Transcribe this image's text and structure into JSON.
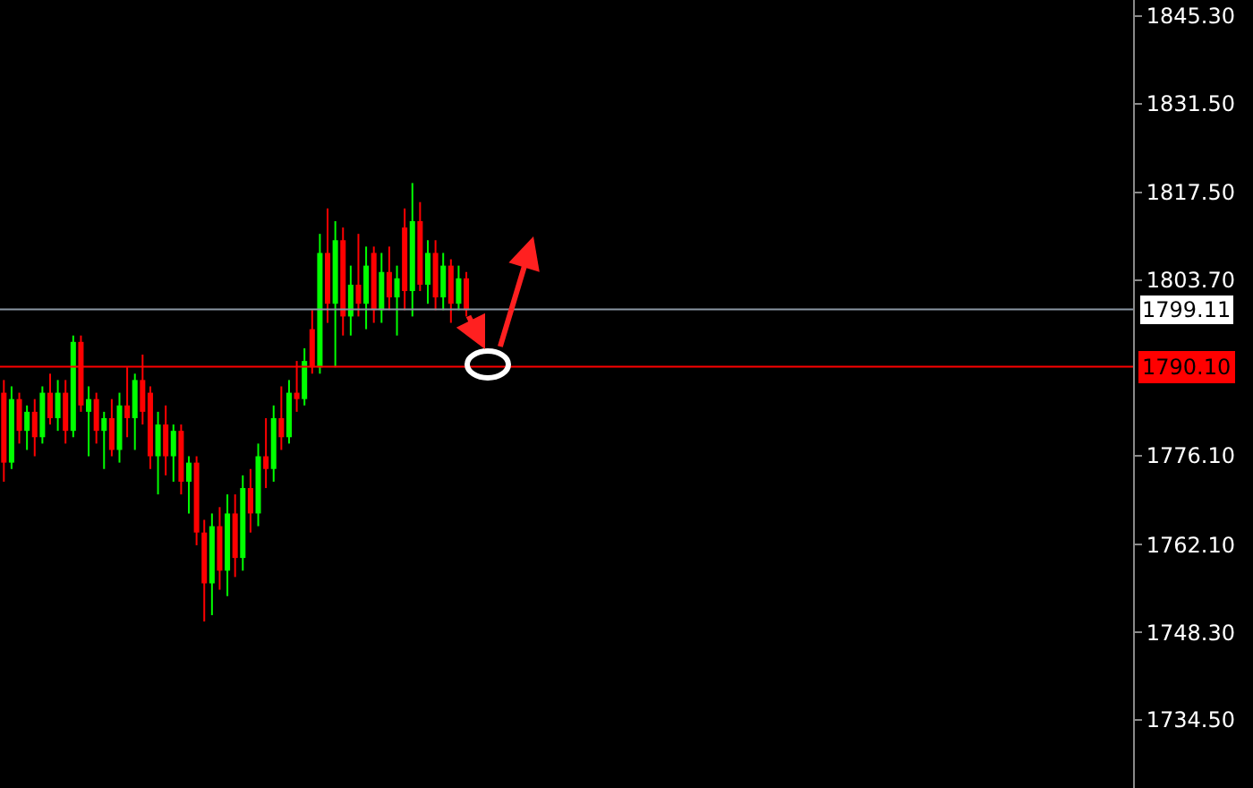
{
  "chart_data": {
    "type": "candlestick",
    "categories": [
      null,
      null,
      null,
      null,
      null,
      null,
      null,
      null,
      null,
      null,
      null,
      null,
      null,
      null,
      null,
      null,
      null,
      null,
      null,
      null,
      null,
      null,
      null,
      null,
      null,
      null,
      null,
      null,
      null,
      null,
      null,
      null,
      null,
      null,
      null,
      null,
      null,
      null,
      null,
      null,
      null,
      null,
      null,
      null,
      null,
      null,
      null,
      null,
      null,
      null,
      null,
      null,
      null,
      null,
      null,
      null,
      null,
      null,
      null,
      null,
      null,
      null,
      null,
      null,
      null,
      null,
      null,
      null,
      null,
      null,
      null,
      null,
      null,
      null,
      null,
      null,
      null,
      null,
      null,
      null,
      null,
      null,
      null,
      null,
      null,
      null,
      null,
      null,
      null,
      null,
      null,
      null,
      null,
      null,
      null,
      null,
      null,
      null,
      null,
      null,
      null,
      null,
      null,
      null,
      null,
      null,
      null,
      null,
      null,
      null,
      null,
      null,
      null,
      null,
      null,
      null,
      null,
      null,
      null,
      null,
      null,
      null,
      null,
      null,
      null,
      null,
      null,
      null,
      null,
      null,
      null,
      null,
      null,
      null,
      null,
      null,
      null,
      null,
      null,
      null,
      null,
      null,
      null,
      null,
      null,
      null,
      null
    ],
    "ohlc": [
      [
        1786,
        1788,
        1772,
        1775
      ],
      [
        1775,
        1787,
        1774,
        1785
      ],
      [
        1785,
        1786,
        1778,
        1780
      ],
      [
        1780,
        1784,
        1777,
        1783
      ],
      [
        1783,
        1785,
        1776,
        1779
      ],
      [
        1779,
        1787,
        1778,
        1786
      ],
      [
        1786,
        1789,
        1781,
        1782
      ],
      [
        1782,
        1788,
        1780,
        1786
      ],
      [
        1786,
        1788,
        1778,
        1780
      ],
      [
        1780,
        1795,
        1779,
        1794
      ],
      [
        1794,
        1795,
        1783,
        1784
      ],
      [
        1783,
        1787,
        1776,
        1785
      ],
      [
        1785,
        1786,
        1778,
        1780
      ],
      [
        1780,
        1783,
        1774,
        1782
      ],
      [
        1782,
        1785,
        1776,
        1777
      ],
      [
        1777,
        1786,
        1775,
        1784
      ],
      [
        1784,
        1790,
        1779,
        1782
      ],
      [
        1782,
        1789,
        1777,
        1788
      ],
      [
        1788,
        1792,
        1781,
        1783
      ],
      [
        1786,
        1787,
        1774,
        1776
      ],
      [
        1776,
        1783,
        1770,
        1781
      ],
      [
        1781,
        1784,
        1773,
        1776
      ],
      [
        1776,
        1781,
        1772,
        1780
      ],
      [
        1780,
        1781,
        1770,
        1772
      ],
      [
        1772,
        1776,
        1767,
        1775
      ],
      [
        1775,
        1776,
        1762,
        1764
      ],
      [
        1764,
        1766,
        1750,
        1756
      ],
      [
        1756,
        1767,
        1751,
        1765
      ],
      [
        1765,
        1768,
        1755,
        1758
      ],
      [
        1758,
        1770,
        1754,
        1767
      ],
      [
        1767,
        1770,
        1757,
        1760
      ],
      [
        1760,
        1773,
        1758,
        1771
      ],
      [
        1771,
        1774,
        1764,
        1767
      ],
      [
        1767,
        1778,
        1765,
        1776
      ],
      [
        1776,
        1782,
        1771,
        1774
      ],
      [
        1774,
        1784,
        1772,
        1782
      ],
      [
        1782,
        1787,
        1777,
        1779
      ],
      [
        1779,
        1788,
        1778,
        1786
      ],
      [
        1786,
        1791,
        1783,
        1785
      ],
      [
        1785,
        1793,
        1784,
        1791
      ],
      [
        1796,
        1799,
        1789,
        1790
      ],
      [
        1790,
        1811,
        1789,
        1808
      ],
      [
        1808,
        1815,
        1797,
        1800
      ],
      [
        1800,
        1813,
        1790,
        1810
      ],
      [
        1810,
        1812,
        1795,
        1798
      ],
      [
        1798,
        1806,
        1795,
        1803
      ],
      [
        1803,
        1811,
        1798,
        1800
      ],
      [
        1800,
        1809,
        1796,
        1806
      ],
      [
        1808,
        1809,
        1797,
        1799
      ],
      [
        1799,
        1808,
        1797,
        1805
      ],
      [
        1805,
        1809,
        1799,
        1801
      ],
      [
        1801,
        1806,
        1795,
        1804
      ],
      [
        1812,
        1815,
        1799,
        1802
      ],
      [
        1802,
        1819,
        1798,
        1813
      ],
      [
        1813,
        1816,
        1802,
        1803
      ],
      [
        1803,
        1810,
        1800,
        1808
      ],
      [
        1808,
        1810,
        1799,
        1801
      ],
      [
        1801,
        1808,
        1799,
        1806
      ],
      [
        1806,
        1807,
        1797,
        1800
      ],
      [
        1800,
        1806,
        1799,
        1804
      ],
      [
        1804,
        1805,
        1798,
        1799
      ],
      null,
      null,
      null,
      null,
      null,
      null,
      null,
      null,
      null,
      null,
      null,
      null,
      null,
      null,
      null,
      null,
      null,
      null,
      null,
      null,
      null,
      null,
      null,
      null,
      null,
      null,
      null,
      null,
      null,
      null,
      null,
      null,
      null,
      null,
      null,
      null,
      null,
      null,
      null,
      null,
      null,
      null,
      null,
      null,
      null,
      null,
      null,
      null,
      null,
      null,
      null,
      null,
      null,
      null,
      null,
      null,
      null,
      null,
      null,
      null,
      null,
      null,
      null,
      null,
      null,
      null,
      null,
      null,
      null,
      null,
      null,
      null,
      null,
      null,
      null,
      null,
      null,
      null,
      null,
      null,
      null,
      null,
      null,
      null,
      null,
      null
    ],
    "colors": [
      "#ff0000",
      "#00ff00",
      "#ff0000",
      "#00ff00",
      "#ff0000",
      "#00ff00",
      "#ff0000",
      "#00ff00",
      "#ff0000",
      "#00ff00",
      "#ff0000",
      "#00ff00",
      "#ff0000",
      "#00ff00",
      "#ff0000",
      "#00ff00",
      "#ff0000",
      "#00ff00",
      "#ff0000",
      "#ff0000",
      "#00ff00",
      "#ff0000",
      "#00ff00",
      "#ff0000",
      "#00ff00",
      "#ff0000",
      "#ff0000",
      "#00ff00",
      "#ff0000",
      "#00ff00",
      "#ff0000",
      "#00ff00",
      "#ff0000",
      "#00ff00",
      "#ff0000",
      "#00ff00",
      "#ff0000",
      "#00ff00",
      "#ff0000",
      "#00ff00",
      "#ff0000",
      "#00ff00",
      "#ff0000",
      "#00ff00",
      "#ff0000",
      "#00ff00",
      "#ff0000",
      "#00ff00",
      "#ff0000",
      "#00ff00",
      "#ff0000",
      "#00ff00",
      "#ff0000",
      "#00ff00",
      "#ff0000",
      "#00ff00",
      "#ff0000",
      "#00ff00",
      "#ff0000",
      "#00ff00",
      "#ff0000",
      null,
      null,
      null,
      null,
      null,
      null,
      null,
      null,
      null,
      null,
      null,
      null,
      null,
      null,
      null,
      null,
      null,
      null,
      null,
      null,
      null,
      null,
      null,
      null,
      null,
      null,
      null,
      null,
      null,
      null,
      null,
      null,
      null,
      null,
      null,
      null,
      null,
      null,
      null,
      null,
      null,
      null,
      null,
      null,
      null,
      null,
      null,
      null,
      null,
      null,
      null,
      null,
      null,
      null,
      null,
      null,
      null,
      null,
      null,
      null,
      null,
      null,
      null,
      null,
      null,
      null,
      null,
      null,
      null,
      null,
      null,
      null,
      null,
      null,
      null,
      null,
      null,
      null,
      null,
      null,
      null,
      null,
      null,
      null,
      null,
      null
    ],
    "ylim": [
      1723.8,
      1847.8
    ],
    "yticks": [
      {
        "value": 1734.5,
        "label": "1734.50"
      },
      {
        "value": 1748.3,
        "label": "1748.30"
      },
      {
        "value": 1762.1,
        "label": "1762.10"
      },
      {
        "value": 1776.1,
        "label": "1776.10"
      },
      {
        "value": 1803.7,
        "label": "1803.70"
      },
      {
        "value": 1817.5,
        "label": "1817.50"
      },
      {
        "value": 1831.5,
        "label": "1831.50"
      },
      {
        "value": 1845.3,
        "label": "1845.30"
      }
    ],
    "tick_labels": "y",
    "grid": false,
    "ref_lines": [
      {
        "axis": "y",
        "value": 1799.11,
        "label": "1799.11",
        "color": "#8a96a3"
      },
      {
        "axis": "y",
        "value": 1790.1,
        "label": "1790.10",
        "color": "#ff0000"
      }
    ]
  }
}
